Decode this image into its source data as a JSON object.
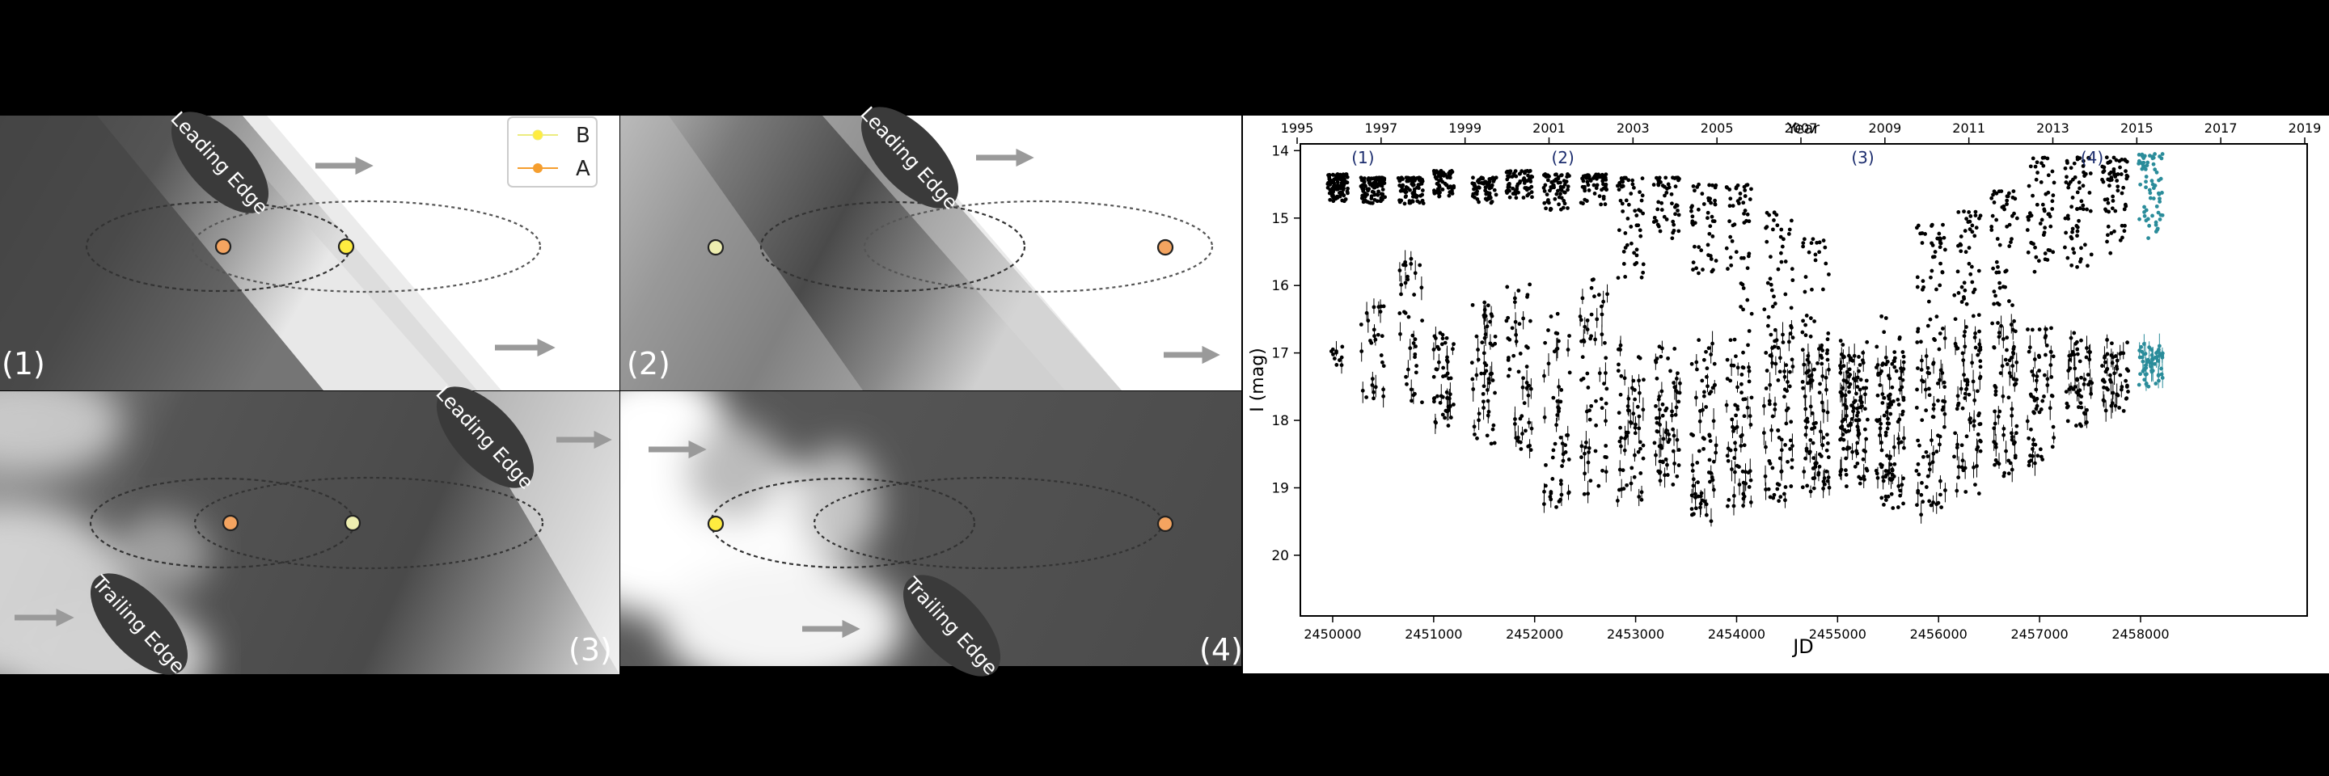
{
  "colors": {
    "star_a": "#f4a460",
    "star_b_bright": "#ffec40",
    "star_b_pale": "#eeeeb0",
    "legend_a_line": "#f59e2e",
    "legend_b_line": "#ecec80",
    "lightcurve_black": "#000000",
    "lightcurve_teal": "#2a8c9a",
    "panel_label_blue": "#1c2d6e",
    "edge_badge": "#3a3a3a"
  },
  "panels": [
    {
      "label": "(1)",
      "badges": [
        "Leading Edge"
      ]
    },
    {
      "label": "(2)",
      "badges": [
        "Leading Edge"
      ]
    },
    {
      "label": "(3)",
      "badges": [
        "Leading Edge",
        "Trailing Edge"
      ]
    },
    {
      "label": "(4)",
      "badges": [
        "Trailing Edge"
      ]
    }
  ],
  "legend": {
    "items": [
      {
        "name": "B"
      },
      {
        "name": "A"
      }
    ]
  },
  "chart_data": {
    "type": "scatter",
    "xlabel": "JD",
    "ylabel": "I (mag)",
    "top_axis_label": "Year",
    "xlim": [
      2449680,
      2459650
    ],
    "ylim": [
      20.9,
      13.9
    ],
    "x_ticks": [
      2450000,
      2451000,
      2452000,
      2453000,
      2454000,
      2455000,
      2456000,
      2457000,
      2458000
    ],
    "y_ticks": [
      14,
      15,
      16,
      17,
      18,
      19,
      20
    ],
    "year_ticks": [
      "1995",
      "1997",
      "1999",
      "2001",
      "2003",
      "2005",
      "2007",
      "2009",
      "2011",
      "2013",
      "2015",
      "2017",
      "2019"
    ],
    "epoch_labels": [
      {
        "text": "(1)",
        "x": 2450300,
        "y": 13.9
      },
      {
        "text": "(2)",
        "x": 2452280,
        "y": 13.9
      },
      {
        "text": "(3)",
        "x": 2455250,
        "y": 13.9
      },
      {
        "text": "(4)",
        "x": 2457520,
        "y": 13.9
      }
    ],
    "series": [
      {
        "color": "#000000",
        "seasons": [
          {
            "start": 2449950,
            "end": 2450150,
            "bright": [
              14.35,
              14.75
            ],
            "faint": [
              16.9,
              17.2
            ],
            "faint_share": 0.1
          },
          {
            "start": 2450280,
            "end": 2450520,
            "bright": [
              14.4,
              14.8
            ],
            "faint": [
              16.3,
              17.7
            ],
            "faint_share": 0.25
          },
          {
            "start": 2450650,
            "end": 2450900,
            "bright": [
              14.4,
              14.8
            ],
            "faint": [
              15.6,
              17.8
            ],
            "faint_share": 0.35
          },
          {
            "start": 2451000,
            "end": 2451200,
            "bright": [
              14.3,
              14.7
            ],
            "faint": [
              16.7,
              18.1
            ],
            "faint_share": 0.4
          },
          {
            "start": 2451380,
            "end": 2451620,
            "bright": [
              14.4,
              14.8
            ],
            "faint": [
              16.2,
              18.4
            ],
            "faint_share": 0.45
          },
          {
            "start": 2451720,
            "end": 2451980,
            "bright": [
              14.3,
              14.7
            ],
            "faint": [
              15.9,
              18.5
            ],
            "faint_share": 0.45
          },
          {
            "start": 2452090,
            "end": 2452350,
            "bright": [
              14.35,
              14.9
            ],
            "faint": [
              16.4,
              19.3
            ],
            "faint_share": 0.5
          },
          {
            "start": 2452450,
            "end": 2452720,
            "bright": [
              14.35,
              14.8
            ],
            "faint": [
              15.9,
              19.1
            ],
            "faint_share": 0.5
          },
          {
            "start": 2452820,
            "end": 2453080,
            "bright": [
              14.4,
              15.9
            ],
            "faint": [
              16.8,
              19.2
            ],
            "faint_share": 0.55
          },
          {
            "start": 2453180,
            "end": 2453440,
            "bright": [
              14.4,
              15.3
            ],
            "faint": [
              16.9,
              19.0
            ],
            "faint_share": 0.55
          },
          {
            "start": 2453550,
            "end": 2453800,
            "bright": [
              14.5,
              15.9
            ],
            "faint": [
              16.8,
              19.5
            ],
            "faint_share": 0.55
          },
          {
            "start": 2453900,
            "end": 2454150,
            "bright": [
              14.5,
              16.9
            ],
            "faint": [
              16.8,
              19.3
            ],
            "faint_share": 0.6
          },
          {
            "start": 2454270,
            "end": 2454560,
            "bright": [
              14.9,
              16.7
            ],
            "faint": [
              16.6,
              19.2
            ],
            "faint_share": 0.6
          },
          {
            "start": 2454650,
            "end": 2454920,
            "bright": [
              15.3,
              16.9
            ],
            "faint": [
              16.9,
              19.1
            ],
            "faint_share": 0.75
          },
          {
            "start": 2455020,
            "end": 2455300,
            "bright": [
              16.8,
              17.6
            ],
            "faint": [
              17.0,
              19.0
            ],
            "faint_share": 0.9
          },
          {
            "start": 2455380,
            "end": 2455660,
            "bright": [
              16.4,
              17.4
            ],
            "faint": [
              17.0,
              19.3
            ],
            "faint_share": 0.85
          },
          {
            "start": 2455780,
            "end": 2456070,
            "bright": [
              15.1,
              16.7
            ],
            "faint": [
              16.7,
              19.4
            ],
            "faint_share": 0.7
          },
          {
            "start": 2456150,
            "end": 2456420,
            "bright": [
              14.9,
              16.5
            ],
            "faint": [
              16.6,
              19.1
            ],
            "faint_share": 0.6
          },
          {
            "start": 2456520,
            "end": 2456780,
            "bright": [
              14.6,
              16.3
            ],
            "faint": [
              16.5,
              18.9
            ],
            "faint_share": 0.55
          },
          {
            "start": 2456880,
            "end": 2457150,
            "bright": [
              14.1,
              16.0
            ],
            "faint": [
              16.6,
              18.7
            ],
            "faint_share": 0.55
          },
          {
            "start": 2457250,
            "end": 2457520,
            "bright": [
              14.1,
              15.9
            ],
            "faint": [
              16.7,
              18.1
            ],
            "faint_share": 0.5
          },
          {
            "start": 2457620,
            "end": 2457880,
            "bright": [
              14.1,
              15.6
            ],
            "faint": [
              16.8,
              17.9
            ],
            "faint_share": 0.45
          }
        ]
      },
      {
        "color": "#2a8c9a",
        "seasons": [
          {
            "start": 2457980,
            "end": 2458220,
            "bright": [
              14.05,
              15.3
            ],
            "faint": [
              16.8,
              17.5
            ],
            "faint_share": 0.45
          }
        ]
      }
    ]
  }
}
